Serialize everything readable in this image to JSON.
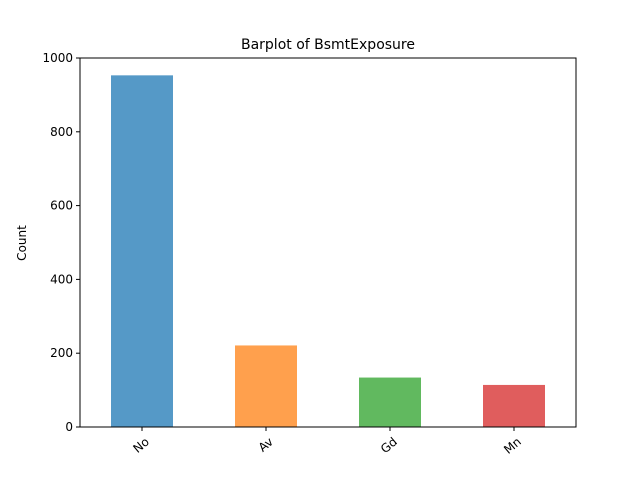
{
  "chart_data": {
    "type": "bar",
    "title": "Barplot of BsmtExposure",
    "xlabel": "",
    "ylabel": "Count",
    "categories": [
      "No",
      "Av",
      "Gd",
      "Mn"
    ],
    "values": [
      953,
      221,
      134,
      114
    ],
    "colors": [
      "#5599c7",
      "#ffa04d",
      "#61b95f",
      "#e05d5d"
    ],
    "ylim": [
      0,
      1000
    ],
    "yticks": [
      0,
      200,
      400,
      600,
      800,
      1000
    ],
    "grid": false,
    "legend": "none"
  }
}
